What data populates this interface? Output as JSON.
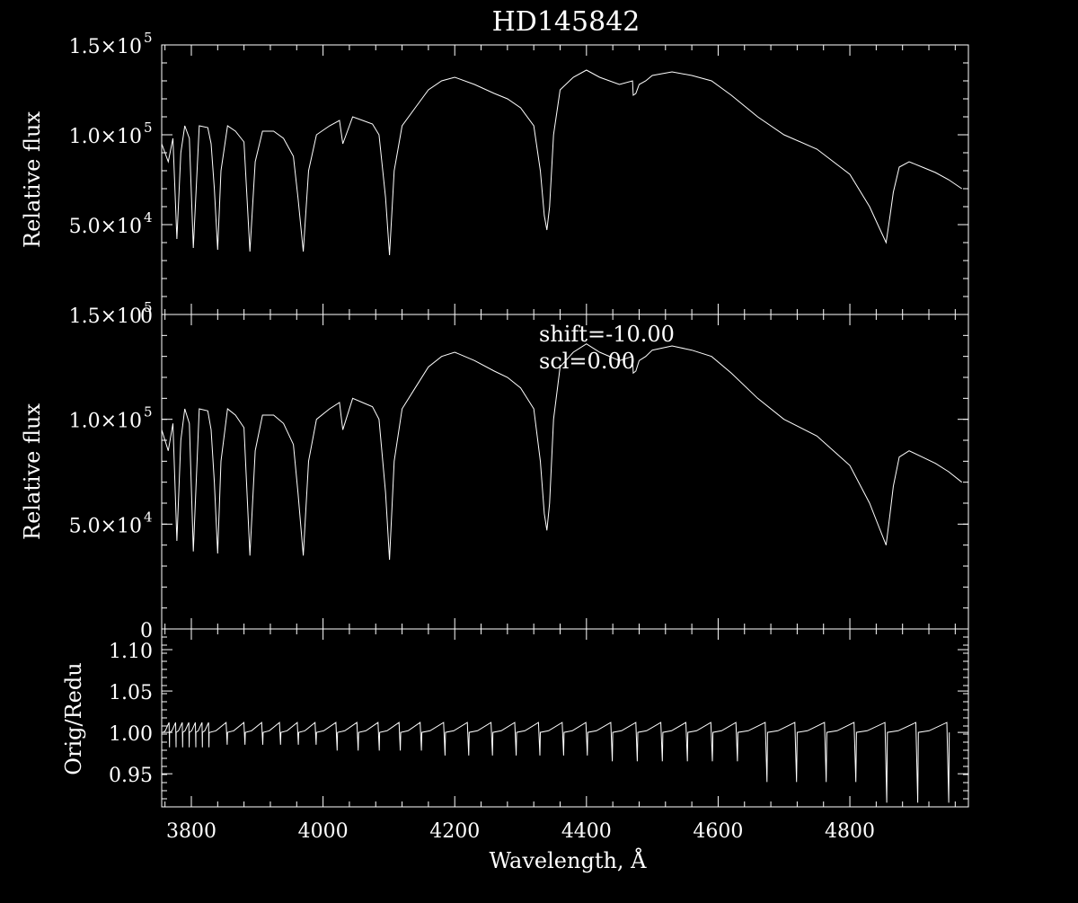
{
  "title": "HD145842",
  "chart_data": [
    {
      "panel": "top",
      "type": "line",
      "title": "HD145842",
      "xlabel": "",
      "ylabel": "Relative flux",
      "xlim": [
        3755,
        4980
      ],
      "ylim": [
        0,
        150000
      ],
      "yticks": [
        {
          "value": 0,
          "label": "0"
        },
        {
          "value": 50000,
          "mant": "5.0×10",
          "exp": "4"
        },
        {
          "value": 100000,
          "mant": "1.0×10",
          "exp": "5"
        },
        {
          "value": 150000,
          "mant": "1.5×10",
          "exp": "5"
        }
      ],
      "series": [
        {
          "x": [
            3755,
            3765,
            3772,
            3778,
            3784,
            3790,
            3797,
            3803,
            3812,
            3825,
            3830,
            3835,
            3840,
            3845,
            3855,
            3867,
            3880,
            3889,
            3897,
            3908,
            3925,
            3940,
            3955,
            3962,
            3970,
            3978,
            3990,
            4010,
            4025,
            4030,
            4045,
            4060,
            4075,
            4085,
            4095,
            4101,
            4108,
            4120,
            4140,
            4160,
            4180,
            4200,
            4230,
            4260,
            4280,
            4300,
            4320,
            4330,
            4336,
            4340,
            4344,
            4350,
            4360,
            4380,
            4400,
            4420,
            4450,
            4470,
            4471,
            4475,
            4480,
            4490,
            4500,
            4530,
            4560,
            4590,
            4620,
            4660,
            4700,
            4750,
            4800,
            4830,
            4845,
            4855,
            4861,
            4866,
            4875,
            4890,
            4910,
            4930,
            4950,
            4970
          ],
          "y": [
            95000,
            85000,
            98000,
            42000,
            90000,
            105000,
            98000,
            37000,
            105000,
            104000,
            95000,
            70000,
            36000,
            80000,
            105000,
            102000,
            96000,
            35000,
            85000,
            102000,
            102000,
            98000,
            88000,
            65000,
            35000,
            80000,
            100000,
            105000,
            108000,
            95000,
            110000,
            108000,
            106000,
            100000,
            65000,
            33000,
            80000,
            105000,
            115000,
            125000,
            130000,
            132000,
            128000,
            123000,
            120000,
            115000,
            105000,
            80000,
            55000,
            47000,
            60000,
            100000,
            125000,
            132000,
            136000,
            132000,
            128000,
            130000,
            122000,
            123000,
            128000,
            130000,
            133000,
            135000,
            133000,
            130000,
            122000,
            110000,
            100000,
            92000,
            78000,
            60000,
            48000,
            40000,
            55000,
            68000,
            82000,
            85000,
            82000,
            79000,
            75000,
            70000
          ]
        }
      ]
    },
    {
      "panel": "middle",
      "type": "line",
      "title": "",
      "xlabel": "",
      "ylabel": "Relative flux",
      "xlim": [
        3755,
        4980
      ],
      "ylim": [
        0,
        150000
      ],
      "yticks": [
        {
          "value": 0,
          "label": "0"
        },
        {
          "value": 50000,
          "mant": "5.0×10",
          "exp": "4"
        },
        {
          "value": 100000,
          "mant": "1.0×10",
          "exp": "5"
        },
        {
          "value": 150000,
          "mant": "1.5×10",
          "exp": "5"
        }
      ],
      "annotations": [
        "shift=-10.00",
        "scl=0.00"
      ],
      "series": [
        {
          "x": [
            3755,
            3765,
            3772,
            3778,
            3784,
            3790,
            3797,
            3803,
            3812,
            3825,
            3830,
            3835,
            3840,
            3845,
            3855,
            3867,
            3880,
            3889,
            3897,
            3908,
            3925,
            3940,
            3955,
            3962,
            3970,
            3978,
            3990,
            4010,
            4025,
            4030,
            4045,
            4060,
            4075,
            4085,
            4095,
            4101,
            4108,
            4120,
            4140,
            4160,
            4180,
            4200,
            4230,
            4260,
            4280,
            4300,
            4320,
            4330,
            4336,
            4340,
            4344,
            4350,
            4360,
            4380,
            4400,
            4420,
            4450,
            4470,
            4471,
            4475,
            4480,
            4490,
            4500,
            4530,
            4560,
            4590,
            4620,
            4660,
            4700,
            4750,
            4800,
            4830,
            4845,
            4855,
            4861,
            4866,
            4875,
            4890,
            4910,
            4930,
            4950,
            4970
          ],
          "y": [
            95000,
            85000,
            98000,
            42000,
            90000,
            105000,
            98000,
            37000,
            105000,
            104000,
            95000,
            70000,
            36000,
            80000,
            105000,
            102000,
            96000,
            35000,
            85000,
            102000,
            102000,
            98000,
            88000,
            65000,
            35000,
            80000,
            100000,
            105000,
            108000,
            95000,
            110000,
            108000,
            106000,
            100000,
            65000,
            33000,
            80000,
            105000,
            115000,
            125000,
            130000,
            132000,
            128000,
            123000,
            120000,
            115000,
            105000,
            80000,
            55000,
            47000,
            60000,
            100000,
            125000,
            132000,
            136000,
            132000,
            128000,
            130000,
            122000,
            123000,
            128000,
            130000,
            133000,
            135000,
            133000,
            130000,
            122000,
            110000,
            100000,
            92000,
            78000,
            60000,
            48000,
            40000,
            55000,
            68000,
            82000,
            85000,
            82000,
            79000,
            75000,
            70000
          ]
        }
      ]
    },
    {
      "panel": "bottom",
      "type": "line",
      "title": "",
      "xlabel": "Wavelength, Å",
      "ylabel": "Orig/Redu",
      "xlim": [
        3755,
        4980
      ],
      "ylim": [
        0.91,
        1.125
      ],
      "xticks": [
        3800,
        4000,
        4200,
        4400,
        4600,
        4800
      ],
      "yticks": [
        {
          "value": 0.95,
          "label": "0.95"
        },
        {
          "value": 1.0,
          "label": "1.00"
        },
        {
          "value": 1.05,
          "label": "1.05"
        },
        {
          "value": 1.1,
          "label": "1.10"
        }
      ],
      "sawtooth": {
        "teeth": [
          {
            "x0": 3757,
            "period": 10,
            "count": 7,
            "dip": 0.982
          },
          {
            "x0": 3828,
            "period": 27,
            "count": 6,
            "dip": 0.985
          },
          {
            "x0": 3990,
            "period": 32,
            "count": 5,
            "dip": 0.978
          },
          {
            "x0": 4150,
            "period": 36,
            "count": 7,
            "dip": 0.972
          },
          {
            "x0": 4402,
            "period": 38,
            "count": 6,
            "dip": 0.965
          },
          {
            "x0": 4630,
            "period": 45,
            "count": 4,
            "dip": 0.94
          },
          {
            "x0": 4810,
            "period": 47,
            "count": 3,
            "dip": 0.915
          }
        ],
        "base": 1.0,
        "peak": 1.012
      }
    }
  ]
}
